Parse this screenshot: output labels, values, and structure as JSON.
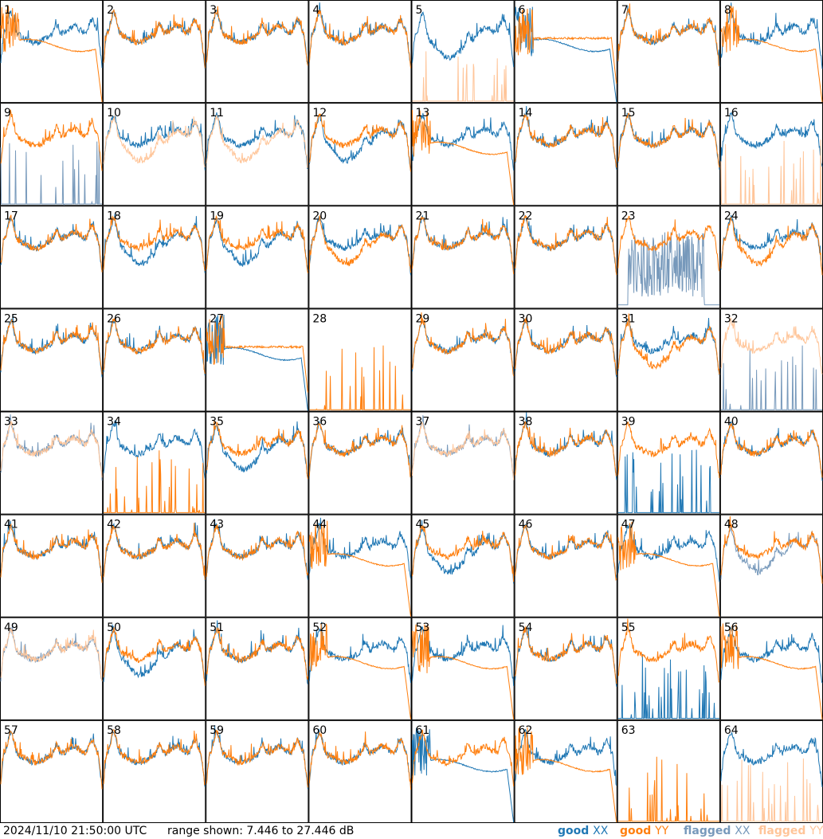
{
  "footer": {
    "timestamp": "2024/11/10 21:50:00 UTC",
    "range": "range shown: 7.446 to 27.446 dB"
  },
  "legend": [
    {
      "key": "good",
      "word": "good",
      "pol": "XX",
      "color": "#1f77b4"
    },
    {
      "key": "good",
      "word": "good",
      "pol": "YY",
      "color": "#ff7f0e"
    },
    {
      "key": "flagged",
      "word": "flagged",
      "pol": "XX",
      "color": "#7799bb"
    },
    {
      "key": "flagged",
      "word": "flagged",
      "pol": "YY",
      "color": "#ffc599"
    }
  ],
  "chart_data": {
    "type": "line",
    "grid": {
      "rows": 8,
      "cols": 8
    },
    "ylim": [
      7.446,
      27.446
    ],
    "yunit": "dB",
    "series_order": [
      "XX",
      "YY"
    ],
    "panels": [
      {
        "label": "1",
        "xx": "normal",
        "xx_flag": false,
        "yy": "dip_flat",
        "yy_flag": false
      },
      {
        "label": "2",
        "xx": "normal",
        "xx_flag": false,
        "yy": "normal",
        "yy_flag": false
      },
      {
        "label": "3",
        "xx": "normal",
        "xx_flag": false,
        "yy": "normal",
        "yy_flag": false
      },
      {
        "label": "4",
        "xx": "normal",
        "xx_flag": false,
        "yy": "normal",
        "yy_flag": false
      },
      {
        "label": "5",
        "xx": "low_mid",
        "xx_flag": false,
        "yy": "spikes",
        "yy_flag": true
      },
      {
        "label": "6",
        "xx": "dip_flat",
        "xx_flag": false,
        "yy": "high_flat",
        "yy_flag": false
      },
      {
        "label": "7",
        "xx": "normal",
        "xx_flag": false,
        "yy": "normal",
        "yy_flag": false
      },
      {
        "label": "8",
        "xx": "normal",
        "xx_flag": false,
        "yy": "dip_flat",
        "yy_flag": false
      },
      {
        "label": "9",
        "xx": "spikes",
        "xx_flag": true,
        "yy": "normal",
        "yy_flag": false
      },
      {
        "label": "10",
        "xx": "normal",
        "xx_flag": false,
        "yy": "low_mid",
        "yy_flag": true
      },
      {
        "label": "11",
        "xx": "normal",
        "xx_flag": false,
        "yy": "low_mid",
        "yy_flag": true
      },
      {
        "label": "12",
        "xx": "low_mid",
        "xx_flag": false,
        "yy": "normal",
        "yy_flag": false
      },
      {
        "label": "13",
        "xx": "normal",
        "xx_flag": false,
        "yy": "dip_flat",
        "yy_flag": false
      },
      {
        "label": "14",
        "xx": "normal",
        "xx_flag": false,
        "yy": "normal",
        "yy_flag": false
      },
      {
        "label": "15",
        "xx": "normal",
        "xx_flag": false,
        "yy": "normal",
        "yy_flag": false
      },
      {
        "label": "16",
        "xx": "normal",
        "xx_flag": false,
        "yy": "spikes",
        "yy_flag": true
      },
      {
        "label": "17",
        "xx": "normal",
        "xx_flag": false,
        "yy": "normal",
        "yy_flag": false
      },
      {
        "label": "18",
        "xx": "low_mid",
        "xx_flag": false,
        "yy": "normal",
        "yy_flag": false
      },
      {
        "label": "19",
        "xx": "low_mid",
        "xx_flag": false,
        "yy": "normal",
        "yy_flag": false
      },
      {
        "label": "20",
        "xx": "normal",
        "xx_flag": false,
        "yy": "low_mid",
        "yy_flag": false
      },
      {
        "label": "21",
        "xx": "normal",
        "xx_flag": false,
        "yy": "normal",
        "yy_flag": false
      },
      {
        "label": "22",
        "xx": "normal",
        "xx_flag": false,
        "yy": "normal",
        "yy_flag": false
      },
      {
        "label": "23",
        "xx": "noisy",
        "xx_flag": true,
        "yy": "normal",
        "yy_flag": false
      },
      {
        "label": "24",
        "xx": "normal",
        "xx_flag": false,
        "yy": "low_mid",
        "yy_flag": false
      },
      {
        "label": "25",
        "xx": "normal",
        "xx_flag": false,
        "yy": "normal",
        "yy_flag": false
      },
      {
        "label": "26",
        "xx": "normal",
        "xx_flag": false,
        "yy": "normal",
        "yy_flag": false
      },
      {
        "label": "27",
        "xx": "dip_flat",
        "xx_flag": false,
        "yy": "high_flat",
        "yy_flag": false
      },
      {
        "label": "28",
        "xx": "none",
        "xx_flag": false,
        "yy": "spikes",
        "yy_flag": false
      },
      {
        "label": "29",
        "xx": "normal",
        "xx_flag": false,
        "yy": "normal",
        "yy_flag": false
      },
      {
        "label": "30",
        "xx": "normal",
        "xx_flag": false,
        "yy": "normal",
        "yy_flag": false
      },
      {
        "label": "31",
        "xx": "normal",
        "xx_flag": false,
        "yy": "low_mid",
        "yy_flag": false
      },
      {
        "label": "32",
        "xx": "spikes",
        "xx_flag": true,
        "yy": "normal",
        "yy_flag": true
      },
      {
        "label": "33",
        "xx": "normal",
        "xx_flag": true,
        "yy": "normal",
        "yy_flag": true
      },
      {
        "label": "34",
        "xx": "normal",
        "xx_flag": false,
        "yy": "spikes",
        "yy_flag": false
      },
      {
        "label": "35",
        "xx": "low_mid",
        "xx_flag": false,
        "yy": "normal",
        "yy_flag": false
      },
      {
        "label": "36",
        "xx": "normal",
        "xx_flag": false,
        "yy": "normal",
        "yy_flag": false
      },
      {
        "label": "37",
        "xx": "normal",
        "xx_flag": true,
        "yy": "normal",
        "yy_flag": true
      },
      {
        "label": "38",
        "xx": "normal",
        "xx_flag": false,
        "yy": "normal",
        "yy_flag": false
      },
      {
        "label": "39",
        "xx": "spikes",
        "xx_flag": false,
        "yy": "normal",
        "yy_flag": false
      },
      {
        "label": "40",
        "xx": "normal",
        "xx_flag": false,
        "yy": "normal",
        "yy_flag": false
      },
      {
        "label": "41",
        "xx": "normal",
        "xx_flag": false,
        "yy": "normal",
        "yy_flag": false
      },
      {
        "label": "42",
        "xx": "normal",
        "xx_flag": false,
        "yy": "normal",
        "yy_flag": false
      },
      {
        "label": "43",
        "xx": "normal",
        "xx_flag": false,
        "yy": "normal",
        "yy_flag": false
      },
      {
        "label": "44",
        "xx": "normal",
        "xx_flag": false,
        "yy": "dip_flat",
        "yy_flag": false
      },
      {
        "label": "45",
        "xx": "low_mid",
        "xx_flag": false,
        "yy": "normal",
        "yy_flag": false
      },
      {
        "label": "46",
        "xx": "normal",
        "xx_flag": false,
        "yy": "normal",
        "yy_flag": false
      },
      {
        "label": "47",
        "xx": "normal",
        "xx_flag": false,
        "yy": "dip_flat",
        "yy_flag": false
      },
      {
        "label": "48",
        "xx": "low_mid",
        "xx_flag": true,
        "yy": "normal",
        "yy_flag": false
      },
      {
        "label": "49",
        "xx": "normal",
        "xx_flag": true,
        "yy": "normal",
        "yy_flag": true
      },
      {
        "label": "50",
        "xx": "low_mid",
        "xx_flag": false,
        "yy": "normal",
        "yy_flag": false
      },
      {
        "label": "51",
        "xx": "normal",
        "xx_flag": false,
        "yy": "normal",
        "yy_flag": false
      },
      {
        "label": "52",
        "xx": "normal",
        "xx_flag": false,
        "yy": "dip_flat",
        "yy_flag": false
      },
      {
        "label": "53",
        "xx": "normal",
        "xx_flag": false,
        "yy": "dip_flat",
        "yy_flag": false
      },
      {
        "label": "54",
        "xx": "normal",
        "xx_flag": false,
        "yy": "normal",
        "yy_flag": false
      },
      {
        "label": "55",
        "xx": "spikes",
        "xx_flag": false,
        "yy": "normal",
        "yy_flag": false
      },
      {
        "label": "56",
        "xx": "normal",
        "xx_flag": false,
        "yy": "dip_flat",
        "yy_flag": false
      },
      {
        "label": "57",
        "xx": "normal",
        "xx_flag": false,
        "yy": "normal",
        "yy_flag": false
      },
      {
        "label": "58",
        "xx": "normal",
        "xx_flag": false,
        "yy": "normal",
        "yy_flag": false
      },
      {
        "label": "59",
        "xx": "normal",
        "xx_flag": false,
        "yy": "normal",
        "yy_flag": false
      },
      {
        "label": "60",
        "xx": "normal",
        "xx_flag": false,
        "yy": "normal",
        "yy_flag": false
      },
      {
        "label": "61",
        "xx": "dip_flat",
        "xx_flag": false,
        "yy": "normal",
        "yy_flag": false
      },
      {
        "label": "62",
        "xx": "normal",
        "xx_flag": false,
        "yy": "dip_flat",
        "yy_flag": false
      },
      {
        "label": "63",
        "xx": "none",
        "xx_flag": false,
        "yy": "spikes",
        "yy_flag": false
      },
      {
        "label": "64",
        "xx": "normal",
        "xx_flag": false,
        "yy": "spikes",
        "yy_flag": true
      }
    ]
  }
}
